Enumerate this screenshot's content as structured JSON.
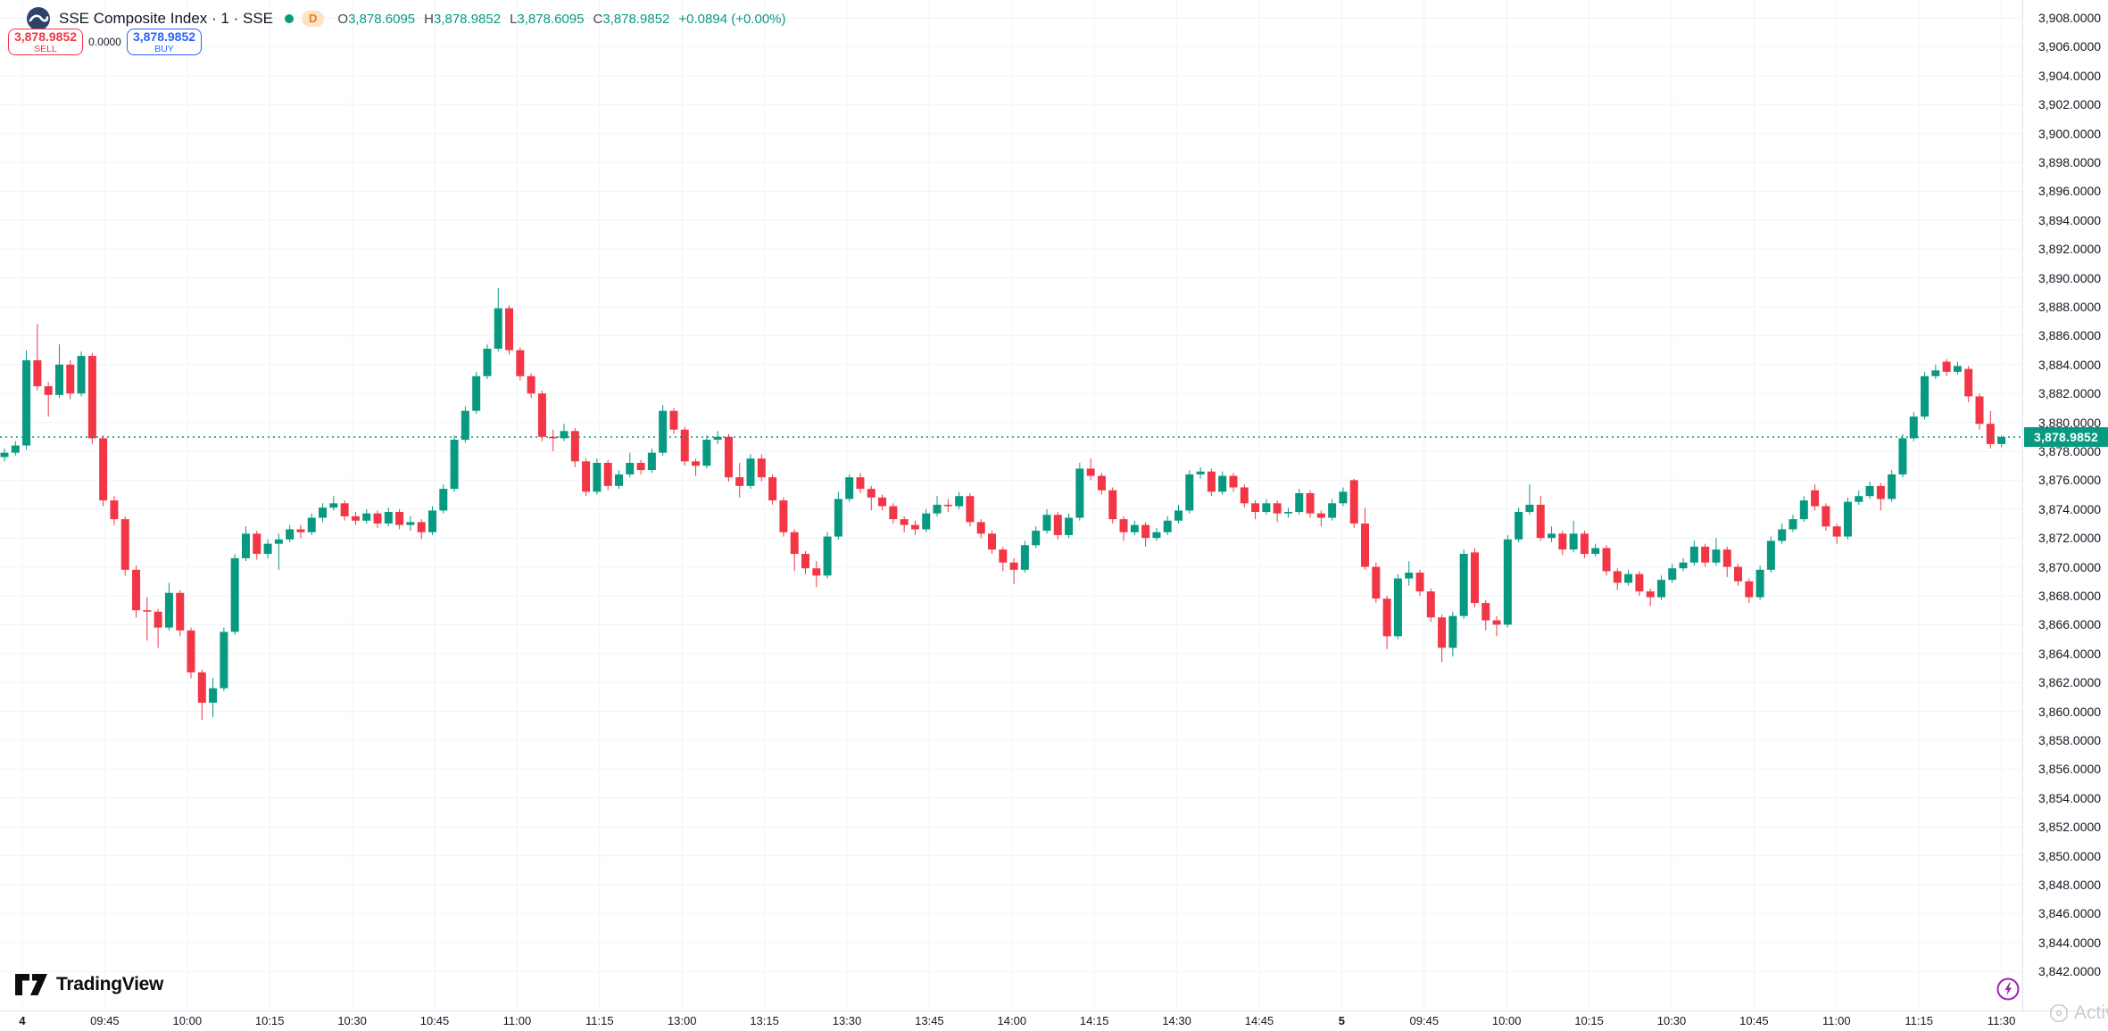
{
  "header": {
    "symbol_title": "SSE Composite Index · 1 · SSE",
    "status_dot_color": "#089981",
    "interval_badge": "D",
    "ohlc": [
      {
        "k": "O",
        "v": "3,878.6095"
      },
      {
        "k": "H",
        "v": "3,878.9852"
      },
      {
        "k": "L",
        "v": "3,878.6095"
      },
      {
        "k": "C",
        "v": "3,878.9852"
      }
    ],
    "change_text": "+0.0894 (+0.00%)"
  },
  "trade_panel": {
    "sell_price": "3,878.9852",
    "sell_label": "SELL",
    "spread": "0.0000",
    "buy_price": "3,878.9852",
    "buy_label": "BUY"
  },
  "footer": {
    "logo_text": "TradingView",
    "watermark_text": "Activ"
  },
  "chart_data": {
    "type": "candlestick",
    "title": "SSE Composite Index",
    "interval": "1",
    "exchange": "SSE",
    "legend_position": "top-left",
    "grid": true,
    "colors": {
      "up": "#089981",
      "down": "#f23645",
      "grid": "#f0f3fa",
      "last_price": "#089981"
    },
    "last_price": 3878.9852,
    "last_price_label": "3,878.9852",
    "y_axis": {
      "min": 3842,
      "max": 3908,
      "step": 2,
      "suffix": ".0000"
    },
    "x_axis": {
      "ticks": [
        {
          "label": "4",
          "bold": true
        },
        {
          "label": "09:45"
        },
        {
          "label": "10:00"
        },
        {
          "label": "10:15"
        },
        {
          "label": "10:30"
        },
        {
          "label": "10:45"
        },
        {
          "label": "11:00"
        },
        {
          "label": "11:15"
        },
        {
          "label": "13:00"
        },
        {
          "label": "13:15"
        },
        {
          "label": "13:30"
        },
        {
          "label": "13:45"
        },
        {
          "label": "14:00"
        },
        {
          "label": "14:15"
        },
        {
          "label": "14:30"
        },
        {
          "label": "14:45"
        },
        {
          "label": "5",
          "bold": true
        },
        {
          "label": "09:45"
        },
        {
          "label": "10:00"
        },
        {
          "label": "10:15"
        },
        {
          "label": "10:30"
        },
        {
          "label": "10:45"
        },
        {
          "label": "11:00"
        },
        {
          "label": "11:15"
        },
        {
          "label": "11:30"
        }
      ]
    },
    "candles": [
      [
        3877.6,
        3878.2,
        3877.3,
        3877.9
      ],
      [
        3877.9,
        3878.7,
        3877.7,
        3878.4
      ],
      [
        3878.4,
        3885.0,
        3878.1,
        3884.3
      ],
      [
        3884.3,
        3886.8,
        3882.2,
        3882.5
      ],
      [
        3882.5,
        3882.8,
        3880.4,
        3881.9
      ],
      [
        3881.9,
        3885.4,
        3881.7,
        3884.0
      ],
      [
        3884.0,
        3884.3,
        3881.6,
        3882.0
      ],
      [
        3882.0,
        3884.9,
        3881.8,
        3884.6
      ],
      [
        3884.6,
        3884.8,
        3878.5,
        3878.9
      ],
      [
        3878.9,
        3879.1,
        3874.2,
        3874.6
      ],
      [
        3874.6,
        3874.9,
        3872.9,
        3873.3
      ],
      [
        3873.3,
        3873.5,
        3869.4,
        3869.8
      ],
      [
        3869.8,
        3870.1,
        3866.5,
        3867.0
      ],
      [
        3867.0,
        3867.9,
        3864.9,
        3866.9
      ],
      [
        3866.9,
        3867.1,
        3864.4,
        3865.8
      ],
      [
        3865.8,
        3868.9,
        3865.6,
        3868.2
      ],
      [
        3868.2,
        3868.4,
        3865.2,
        3865.6
      ],
      [
        3865.6,
        3865.8,
        3862.3,
        3862.7
      ],
      [
        3862.7,
        3862.9,
        3859.4,
        3860.6
      ],
      [
        3860.6,
        3862.3,
        3859.6,
        3861.6
      ],
      [
        3861.6,
        3865.8,
        3861.4,
        3865.5
      ],
      [
        3865.5,
        3870.9,
        3865.3,
        3870.6
      ],
      [
        3870.6,
        3872.8,
        3870.4,
        3872.3
      ],
      [
        3872.3,
        3872.5,
        3870.5,
        3870.9
      ],
      [
        3870.9,
        3871.9,
        3870.6,
        3871.6
      ],
      [
        3871.6,
        3872.3,
        3869.8,
        3871.9
      ],
      [
        3871.9,
        3872.9,
        3871.7,
        3872.6
      ],
      [
        3872.6,
        3872.9,
        3872.0,
        3872.4
      ],
      [
        3872.4,
        3873.7,
        3872.2,
        3873.4
      ],
      [
        3873.4,
        3874.4,
        3873.1,
        3874.1
      ],
      [
        3874.1,
        3874.9,
        3873.9,
        3874.4
      ],
      [
        3874.4,
        3874.6,
        3873.2,
        3873.5
      ],
      [
        3873.5,
        3873.8,
        3872.9,
        3873.2
      ],
      [
        3873.2,
        3874.0,
        3873.0,
        3873.7
      ],
      [
        3873.7,
        3873.9,
        3872.7,
        3873.0
      ],
      [
        3873.0,
        3874.1,
        3872.8,
        3873.8
      ],
      [
        3873.8,
        3874.0,
        3872.6,
        3872.9
      ],
      [
        3872.9,
        3873.5,
        3872.5,
        3873.1
      ],
      [
        3873.1,
        3873.3,
        3871.9,
        3872.4
      ],
      [
        3872.4,
        3874.2,
        3872.2,
        3873.9
      ],
      [
        3873.9,
        3875.7,
        3873.7,
        3875.4
      ],
      [
        3875.4,
        3879.1,
        3875.2,
        3878.8
      ],
      [
        3878.8,
        3881.1,
        3878.6,
        3880.8
      ],
      [
        3880.8,
        3883.5,
        3880.6,
        3883.2
      ],
      [
        3883.2,
        3885.4,
        3883.0,
        3885.1
      ],
      [
        3885.1,
        3889.3,
        3884.9,
        3887.9
      ],
      [
        3887.9,
        3888.1,
        3884.7,
        3885.0
      ],
      [
        3885.0,
        3885.2,
        3882.9,
        3883.2
      ],
      [
        3883.2,
        3883.4,
        3881.7,
        3882.0
      ],
      [
        3882.0,
        3882.2,
        3878.7,
        3879.0
      ],
      [
        3879.0,
        3879.5,
        3878.0,
        3878.9
      ],
      [
        3878.9,
        3879.9,
        3878.7,
        3879.4
      ],
      [
        3879.4,
        3879.6,
        3876.9,
        3877.3
      ],
      [
        3877.3,
        3877.5,
        3874.9,
        3875.2
      ],
      [
        3875.2,
        3877.5,
        3875.0,
        3877.2
      ],
      [
        3877.2,
        3877.4,
        3875.3,
        3875.6
      ],
      [
        3875.6,
        3876.7,
        3875.4,
        3876.4
      ],
      [
        3876.4,
        3877.9,
        3876.2,
        3877.2
      ],
      [
        3877.2,
        3877.4,
        3876.4,
        3876.7
      ],
      [
        3876.7,
        3878.2,
        3876.5,
        3877.9
      ],
      [
        3877.9,
        3881.2,
        3877.7,
        3880.8
      ],
      [
        3880.8,
        3881.0,
        3879.2,
        3879.5
      ],
      [
        3879.5,
        3879.7,
        3877.0,
        3877.3
      ],
      [
        3877.3,
        3877.5,
        3876.3,
        3877.0
      ],
      [
        3877.0,
        3879.1,
        3876.8,
        3878.8
      ],
      [
        3878.8,
        3879.4,
        3878.5,
        3879.0
      ],
      [
        3879.0,
        3879.2,
        3875.9,
        3876.2
      ],
      [
        3876.2,
        3877.2,
        3874.8,
        3875.6
      ],
      [
        3875.6,
        3877.8,
        3875.4,
        3877.5
      ],
      [
        3877.5,
        3877.8,
        3875.9,
        3876.2
      ],
      [
        3876.2,
        3876.4,
        3874.3,
        3874.6
      ],
      [
        3874.6,
        3874.8,
        3872.1,
        3872.4
      ],
      [
        3872.4,
        3872.6,
        3869.7,
        3870.9
      ],
      [
        3870.9,
        3871.1,
        3869.5,
        3869.9
      ],
      [
        3869.9,
        3870.4,
        3868.6,
        3869.4
      ],
      [
        3869.4,
        3872.4,
        3869.2,
        3872.1
      ],
      [
        3872.1,
        3875.2,
        3871.9,
        3874.7
      ],
      [
        3874.7,
        3876.4,
        3874.5,
        3876.2
      ],
      [
        3876.2,
        3876.5,
        3875.1,
        3875.4
      ],
      [
        3875.4,
        3875.6,
        3873.9,
        3874.8
      ],
      [
        3874.8,
        3875.0,
        3873.9,
        3874.2
      ],
      [
        3874.2,
        3874.4,
        3873.0,
        3873.3
      ],
      [
        3873.3,
        3873.5,
        3872.4,
        3872.9
      ],
      [
        3872.9,
        3873.2,
        3872.2,
        3872.6
      ],
      [
        3872.6,
        3874.0,
        3872.4,
        3873.7
      ],
      [
        3873.7,
        3874.9,
        3873.5,
        3874.3
      ],
      [
        3874.3,
        3874.7,
        3873.8,
        3874.2
      ],
      [
        3874.2,
        3875.2,
        3874.0,
        3874.9
      ],
      [
        3874.9,
        3875.1,
        3872.8,
        3873.1
      ],
      [
        3873.1,
        3873.3,
        3872.0,
        3872.3
      ],
      [
        3872.3,
        3872.5,
        3870.9,
        3871.2
      ],
      [
        3871.2,
        3871.4,
        3869.7,
        3870.3
      ],
      [
        3870.3,
        3870.6,
        3868.8,
        3869.8
      ],
      [
        3869.8,
        3871.8,
        3869.6,
        3871.5
      ],
      [
        3871.5,
        3872.8,
        3871.3,
        3872.5
      ],
      [
        3872.5,
        3874.0,
        3872.3,
        3873.6
      ],
      [
        3873.6,
        3873.8,
        3871.9,
        3872.2
      ],
      [
        3872.2,
        3873.7,
        3872.0,
        3873.4
      ],
      [
        3873.4,
        3877.2,
        3873.2,
        3876.8
      ],
      [
        3876.8,
        3877.5,
        3876.0,
        3876.3
      ],
      [
        3876.3,
        3876.5,
        3875.0,
        3875.3
      ],
      [
        3875.3,
        3875.5,
        3873.0,
        3873.3
      ],
      [
        3873.3,
        3873.5,
        3871.8,
        3872.4
      ],
      [
        3872.4,
        3873.2,
        3872.2,
        3872.9
      ],
      [
        3872.9,
        3873.1,
        3871.4,
        3872.0
      ],
      [
        3872.0,
        3872.7,
        3871.8,
        3872.4
      ],
      [
        3872.4,
        3873.5,
        3872.2,
        3873.2
      ],
      [
        3873.2,
        3874.3,
        3873.0,
        3873.9
      ],
      [
        3873.9,
        3876.7,
        3873.7,
        3876.4
      ],
      [
        3876.4,
        3876.9,
        3876.1,
        3876.6
      ],
      [
        3876.6,
        3876.8,
        3874.9,
        3875.2
      ],
      [
        3875.2,
        3876.6,
        3875.0,
        3876.3
      ],
      [
        3876.3,
        3876.5,
        3875.2,
        3875.5
      ],
      [
        3875.5,
        3875.7,
        3874.1,
        3874.4
      ],
      [
        3874.4,
        3874.6,
        3873.3,
        3873.8
      ],
      [
        3873.8,
        3874.7,
        3873.6,
        3874.4
      ],
      [
        3874.4,
        3874.6,
        3873.1,
        3873.7
      ],
      [
        3873.7,
        3874.1,
        3873.4,
        3873.8
      ],
      [
        3873.8,
        3875.4,
        3873.6,
        3875.1
      ],
      [
        3875.1,
        3875.3,
        3873.4,
        3873.7
      ],
      [
        3873.7,
        3873.9,
        3872.8,
        3873.4
      ],
      [
        3873.4,
        3874.7,
        3873.2,
        3874.4
      ],
      [
        3874.4,
        3875.5,
        3874.2,
        3875.2
      ],
      [
        3876.0,
        3876.1,
        3872.7,
        3873.0
      ],
      [
        3873.0,
        3874.1,
        3869.8,
        3870.0
      ],
      [
        3870.0,
        3870.3,
        3867.5,
        3867.8
      ],
      [
        3867.8,
        3868.0,
        3864.3,
        3865.2
      ],
      [
        3865.2,
        3869.5,
        3865.0,
        3869.2
      ],
      [
        3869.2,
        3870.4,
        3868.7,
        3869.6
      ],
      [
        3869.6,
        3869.8,
        3868.0,
        3868.3
      ],
      [
        3868.3,
        3868.5,
        3866.2,
        3866.5
      ],
      [
        3866.5,
        3866.7,
        3863.4,
        3864.4
      ],
      [
        3864.4,
        3866.9,
        3863.8,
        3866.6
      ],
      [
        3866.6,
        3871.2,
        3866.4,
        3870.9
      ],
      [
        3871.0,
        3871.3,
        3867.2,
        3867.5
      ],
      [
        3867.5,
        3867.7,
        3865.6,
        3866.3
      ],
      [
        3866.3,
        3866.6,
        3865.2,
        3866.0
      ],
      [
        3866.0,
        3872.2,
        3865.8,
        3871.9
      ],
      [
        3871.9,
        3874.1,
        3871.7,
        3873.8
      ],
      [
        3873.8,
        3875.7,
        3873.6,
        3874.3
      ],
      [
        3874.3,
        3874.9,
        3871.8,
        3872.0
      ],
      [
        3872.0,
        3872.8,
        3871.7,
        3872.3
      ],
      [
        3872.3,
        3872.5,
        3870.8,
        3871.2
      ],
      [
        3871.2,
        3873.2,
        3871.0,
        3872.3
      ],
      [
        3872.3,
        3872.5,
        3870.6,
        3870.9
      ],
      [
        3870.9,
        3871.6,
        3870.7,
        3871.3
      ],
      [
        3871.3,
        3871.5,
        3869.4,
        3869.7
      ],
      [
        3869.7,
        3869.9,
        3868.4,
        3868.9
      ],
      [
        3868.9,
        3869.8,
        3868.7,
        3869.5
      ],
      [
        3869.5,
        3869.7,
        3868.0,
        3868.3
      ],
      [
        3868.3,
        3868.5,
        3867.3,
        3867.9
      ],
      [
        3867.9,
        3869.4,
        3867.7,
        3869.1
      ],
      [
        3869.1,
        3870.2,
        3868.9,
        3869.9
      ],
      [
        3869.9,
        3870.6,
        3869.7,
        3870.3
      ],
      [
        3870.3,
        3871.8,
        3870.1,
        3871.4
      ],
      [
        3871.4,
        3871.6,
        3870.0,
        3870.3
      ],
      [
        3870.3,
        3872.0,
        3870.1,
        3871.2
      ],
      [
        3871.2,
        3871.4,
        3869.3,
        3870.0
      ],
      [
        3870.0,
        3870.2,
        3868.7,
        3869.0
      ],
      [
        3869.0,
        3869.2,
        3867.5,
        3867.9
      ],
      [
        3867.9,
        3870.1,
        3867.7,
        3869.8
      ],
      [
        3869.8,
        3872.1,
        3869.6,
        3871.8
      ],
      [
        3871.8,
        3873.0,
        3871.6,
        3872.6
      ],
      [
        3872.6,
        3873.6,
        3872.4,
        3873.3
      ],
      [
        3873.3,
        3874.9,
        3873.1,
        3874.6
      ],
      [
        3875.3,
        3875.7,
        3873.9,
        3874.2
      ],
      [
        3874.2,
        3874.4,
        3872.5,
        3872.8
      ],
      [
        3872.8,
        3873.0,
        3871.6,
        3872.1
      ],
      [
        3872.1,
        3874.8,
        3871.9,
        3874.5
      ],
      [
        3874.5,
        3875.3,
        3874.3,
        3874.9
      ],
      [
        3874.9,
        3875.9,
        3874.7,
        3875.6
      ],
      [
        3875.6,
        3875.8,
        3873.9,
        3874.7
      ],
      [
        3874.7,
        3876.7,
        3874.5,
        3876.4
      ],
      [
        3876.4,
        3879.2,
        3876.2,
        3878.9
      ],
      [
        3878.9,
        3880.7,
        3878.7,
        3880.4
      ],
      [
        3880.4,
        3883.5,
        3880.2,
        3883.2
      ],
      [
        3883.2,
        3884.0,
        3883.0,
        3883.6
      ],
      [
        3884.2,
        3884.4,
        3883.2,
        3883.5
      ],
      [
        3883.5,
        3884.2,
        3883.3,
        3883.9
      ],
      [
        3883.7,
        3883.9,
        3881.4,
        3881.8
      ],
      [
        3881.8,
        3882.0,
        3879.5,
        3879.9
      ],
      [
        3879.9,
        3880.8,
        3878.2,
        3878.5
      ],
      [
        3878.5,
        3879.1,
        3878.3,
        3878.99
      ]
    ]
  }
}
